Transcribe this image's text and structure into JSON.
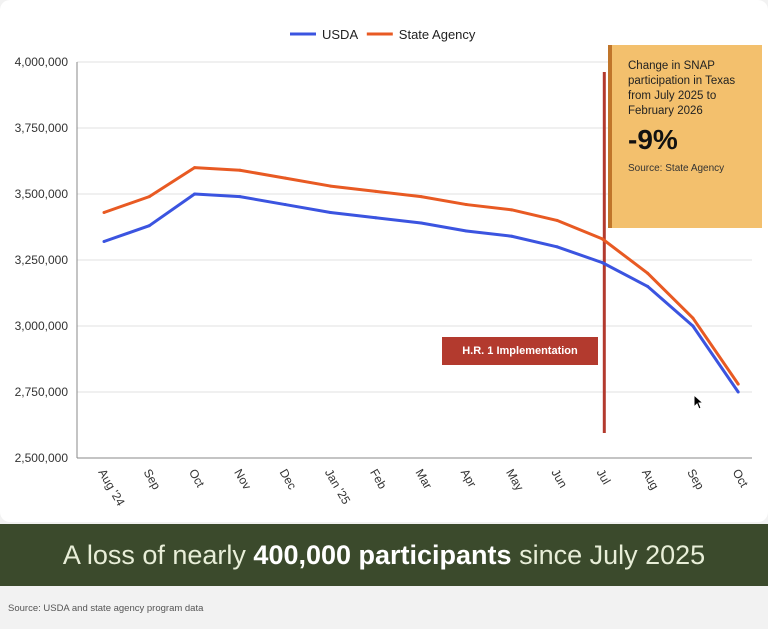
{
  "chart_data": {
    "type": "line",
    "categories": [
      "Aug '24",
      "Sep",
      "Oct",
      "Nov",
      "Dec",
      "Jan '25",
      "Feb",
      "Mar",
      "Apr",
      "May",
      "Jun",
      "Jul",
      "Aug",
      "Sep",
      "Oct"
    ],
    "series": [
      {
        "name": "USDA",
        "color": "#3b54e0",
        "values": [
          3320000,
          3380000,
          3500000,
          3490000,
          3460000,
          3430000,
          3410000,
          3390000,
          3360000,
          3340000,
          3300000,
          3240000,
          3150000,
          3000000,
          2750000
        ]
      },
      {
        "name": "State Agency",
        "color": "#e85a23",
        "values": [
          3430000,
          3490000,
          3600000,
          3590000,
          3560000,
          3530000,
          3510000,
          3490000,
          3460000,
          3440000,
          3400000,
          3330000,
          3200000,
          3030000,
          2780000
        ]
      }
    ],
    "y_ticks": [
      "4,000,000",
      "3,750,000",
      "3,500,000",
      "3,250,000",
      "3,000,000",
      "2,750,000",
      "2,500,000"
    ],
    "ylim": [
      2500000,
      4000000
    ],
    "grid": true,
    "legend_position": "top-center",
    "marker_line": {
      "category": "Jul",
      "color": "#b33a2e",
      "label": "H.R. 1 Implementation"
    }
  },
  "callout": {
    "text": "Change in SNAP participation in Texas from July 2025 to February 2026",
    "value": "-9%",
    "source": "Source: State Agency"
  },
  "banner": {
    "prefix": "A loss of nearly ",
    "bold": "400,000 participants",
    "suffix": " since July 2025"
  },
  "source_note": "Source: USDA and state agency program data",
  "cursor_icon": "mouse-pointer-icon"
}
